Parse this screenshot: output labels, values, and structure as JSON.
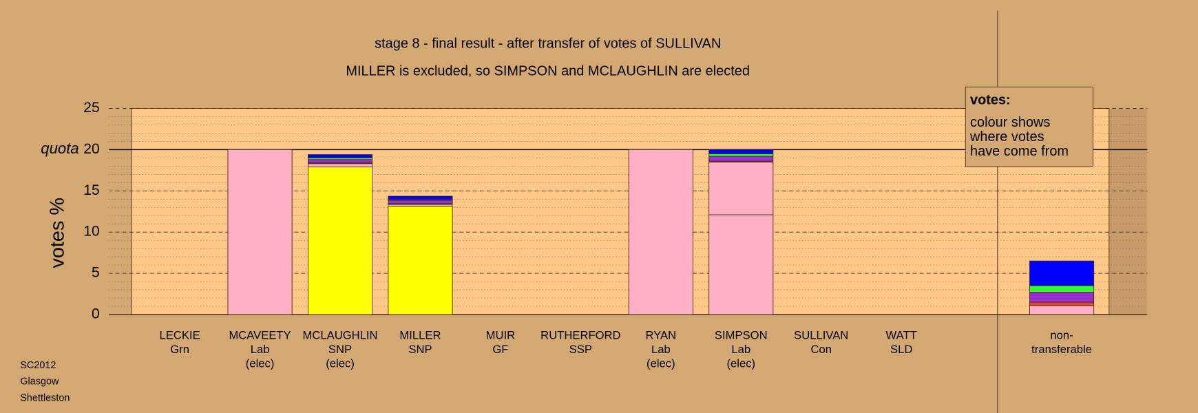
{
  "chart_data": {
    "type": "stacked-bar",
    "title": "stage 8 - final result - after transfer of votes of SULLIVAN",
    "subtitle": "MILLER is excluded, so SIMPSON and MCLAUGHLIN are elected",
    "y_label": "votes %",
    "categories": [
      [
        "LECKIE",
        "Grn"
      ],
      [
        "MCAVEETY",
        "Lab",
        "(elec)"
      ],
      [
        "MCLAUGHLIN",
        "SNP",
        "(elec)"
      ],
      [
        "MILLER",
        "SNP"
      ],
      [
        "MUIR",
        "GF"
      ],
      [
        "RUTHERFORD",
        "SSP"
      ],
      [
        "RYAN",
        "Lab",
        "(elec)"
      ],
      [
        "SIMPSON",
        "Lab",
        "(elec)"
      ],
      [
        "SULLIVAN",
        "Con"
      ],
      [
        "WATT",
        "SLD"
      ],
      [
        "non-",
        "transferable"
      ]
    ],
    "series": [
      {
        "color": "#ffff00",
        "values": [
          0,
          0,
          17.9,
          13.15,
          0,
          0,
          0,
          0,
          0,
          0,
          0
        ]
      },
      {
        "color": "#ffb0c4",
        "values": [
          0,
          20,
          0.4,
          0.2,
          0,
          0,
          20,
          12.1,
          0,
          0,
          1.1
        ]
      },
      {
        "color": "#ffb0c4",
        "values": [
          0,
          0,
          0,
          0,
          0,
          0,
          0,
          6.4,
          0,
          0,
          0
        ]
      },
      {
        "color": "#e8402a",
        "values": [
          0,
          0,
          0.1,
          0.1,
          0,
          0,
          0,
          0.1,
          0,
          0,
          0.4
        ]
      },
      {
        "color": "#9a2fd0",
        "values": [
          0,
          0,
          0.4,
          0.4,
          0,
          0,
          0,
          0.6,
          0,
          0,
          1.2
        ]
      },
      {
        "color": "#33ff33",
        "values": [
          0,
          0,
          0.2,
          0.1,
          0,
          0,
          0,
          0.3,
          0,
          0,
          0.8
        ]
      },
      {
        "color": "#0000ff",
        "values": [
          0,
          0,
          0.4,
          0.4,
          0,
          0,
          0,
          0.5,
          0,
          0,
          3.0
        ]
      }
    ],
    "ylim": [
      0,
      25
    ],
    "yticks": [
      0,
      5,
      10,
      15,
      20,
      25
    ],
    "minor_grid_step": 1,
    "quota": {
      "value": 20,
      "label": "quota"
    },
    "legend_note": {
      "title": "votes:",
      "lines": [
        "colour shows",
        "where votes",
        "have come from"
      ]
    },
    "footer": [
      "SC2012",
      "Glasgow",
      "Shettleston"
    ]
  }
}
